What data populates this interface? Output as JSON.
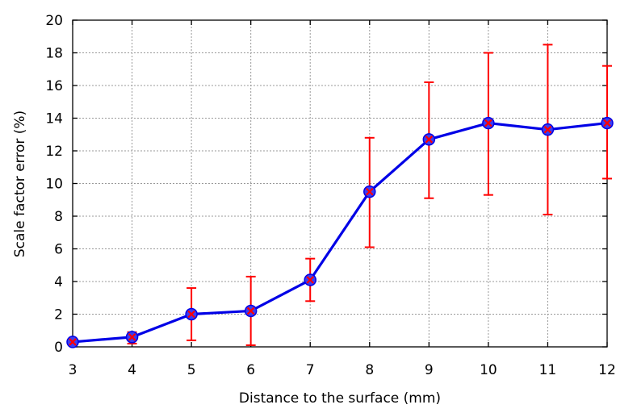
{
  "chart_data": {
    "type": "line",
    "title": "",
    "xlabel": "Distance to the surface (mm)",
    "ylabel": "Scale factor error (%)",
    "xlim": [
      3,
      12
    ],
    "ylim": [
      0,
      20
    ],
    "x_ticks": [
      3,
      4,
      5,
      6,
      7,
      8,
      9,
      10,
      11,
      12
    ],
    "y_ticks": [
      0,
      2,
      4,
      6,
      8,
      10,
      12,
      14,
      16,
      18,
      20
    ],
    "grid": true,
    "legend": "none",
    "series": [
      {
        "x": [
          3,
          4,
          5,
          6,
          7,
          8,
          9,
          10,
          11,
          12
        ],
        "values": [
          0.3,
          0.6,
          2.0,
          2.2,
          4.1,
          9.5,
          12.7,
          13.7,
          13.3,
          13.7
        ],
        "error_low": [
          0.3,
          0.2,
          0.4,
          0.1,
          2.8,
          6.1,
          9.1,
          9.3,
          8.1,
          10.3
        ],
        "error_high": [
          0.3,
          0.9,
          3.6,
          4.3,
          5.4,
          12.8,
          16.2,
          18.0,
          18.5,
          17.2
        ],
        "line_color": "#0000e6",
        "marker_fill": "#3c3cf0",
        "error_color": "#ff0000"
      }
    ]
  }
}
